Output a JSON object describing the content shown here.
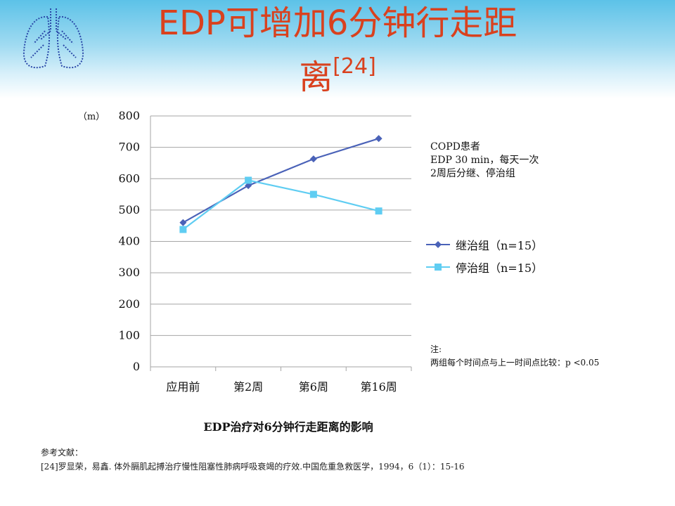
{
  "slide": {
    "title_main": "EDP可增加6分钟行走距",
    "title_second": "离",
    "title_ref": "[24]"
  },
  "notes": {
    "condition_lines": [
      "COPD患者",
      "EDP 30 min，每天一次",
      "2周后分继、停治组"
    ],
    "stat_label": "注:",
    "stat_text": "两组每个时间点与上一时间点比较：p <0.05"
  },
  "caption": "EDP治疗对6分钟行走距离的影响",
  "references": {
    "heading": "参考文献：",
    "entry": "[24]罗显荣，易鑫. 体外膈肌起搏治疗慢性阻塞性肺病呼吸衰竭的疗效.中国危重急救医学，1994，6（1）：15-16"
  },
  "colors": {
    "title": "#d9411e",
    "series_continue": "#4a62b8",
    "series_stop": "#5fcdf2",
    "grid": "#a6a6a6"
  },
  "chart_data": {
    "type": "line",
    "categories": [
      "应用前",
      "第2周",
      "第6周",
      "第16周"
    ],
    "y_unit_label": "（m）",
    "ylim": [
      0,
      800
    ],
    "yticks": [
      0,
      100,
      200,
      300,
      400,
      500,
      600,
      700,
      800
    ],
    "grid": true,
    "legend_position": "right",
    "series": [
      {
        "name": "继治组（n=15）",
        "marker": "diamond",
        "values": [
          460,
          578,
          663,
          728
        ]
      },
      {
        "name": "停治组（n=15）",
        "marker": "square",
        "values": [
          438,
          595,
          550,
          497
        ]
      }
    ]
  }
}
